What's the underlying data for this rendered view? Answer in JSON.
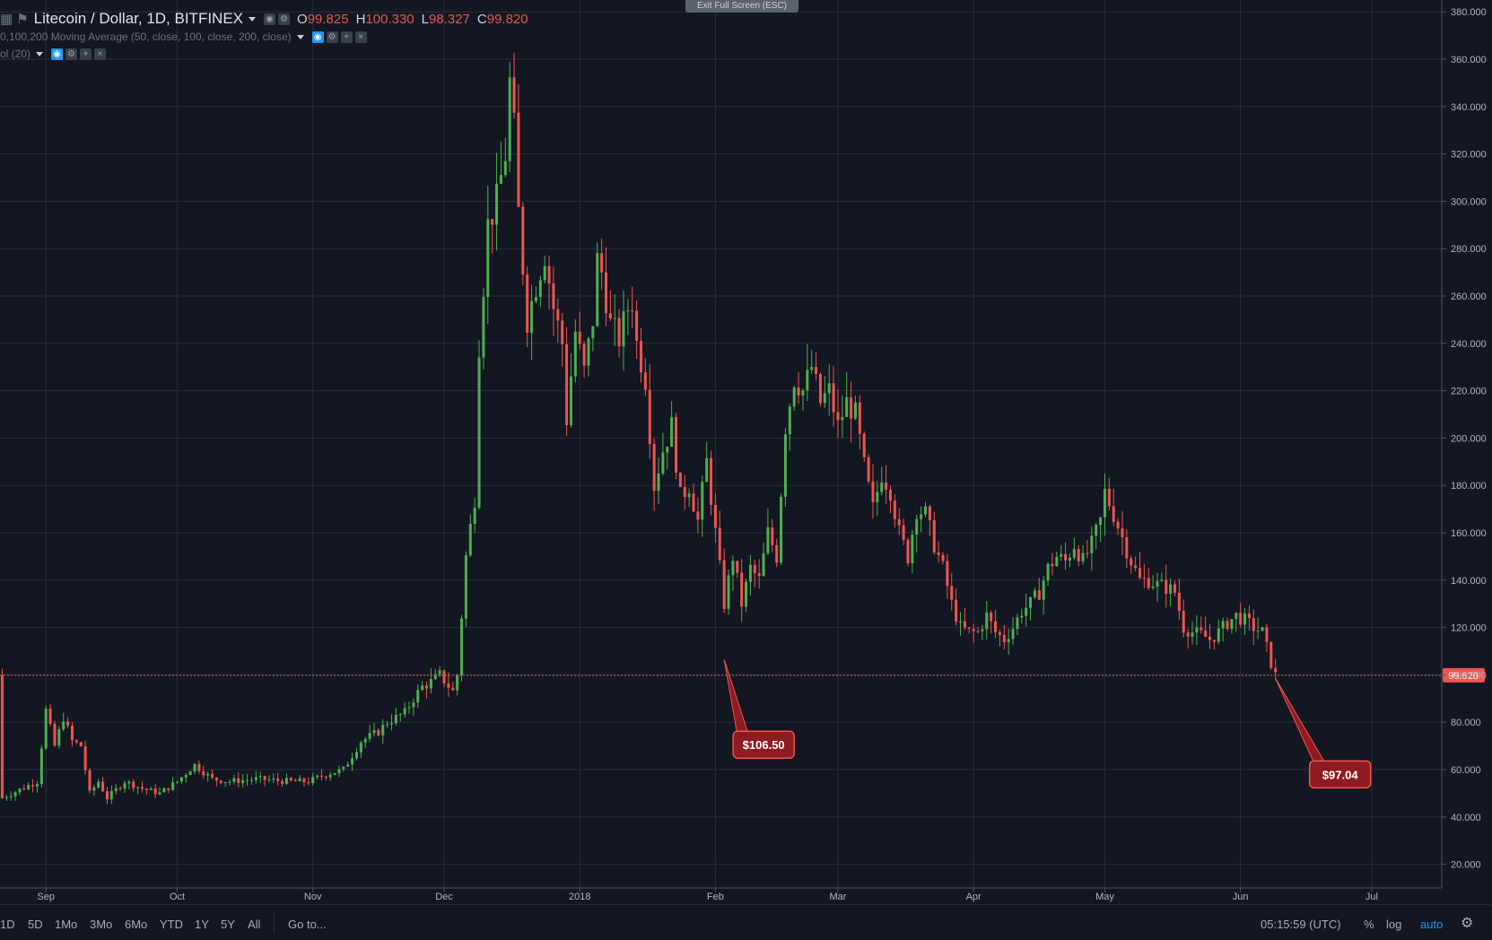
{
  "header": {
    "title": "Litecoin / Dollar, 1D, BITFINEX",
    "ohlc": [
      {
        "k": "O",
        "v": "99.825"
      },
      {
        "k": "H",
        "v": "100.330"
      },
      {
        "k": "L",
        "v": "98.327"
      },
      {
        "k": "C",
        "v": "99.820"
      }
    ],
    "indicator_ma": "0,100,200 Moving Average (50, close, 100, close, 200, close)",
    "indicator_vol": "ol (20)",
    "fullscreen_button": "Exit Full Screen (ESC)"
  },
  "toolbar": {
    "ranges": [
      "1D",
      "5D",
      "1Mo",
      "3Mo",
      "6Mo",
      "YTD",
      "1Y",
      "5Y",
      "All"
    ],
    "goto": "Go to...",
    "clock": "05:15:59 (UTC)",
    "percent": "%",
    "log": "log",
    "auto": "auto"
  },
  "colors": {
    "background": "#131722",
    "grid": "#2a2e39",
    "up": "#26a69a",
    "up_candle": "#4caf50",
    "down": "#ef5350",
    "callout": "#8e1a22",
    "accent": "#2196f3"
  },
  "chart_data": {
    "type": "candlestick",
    "title": "Litecoin / Dollar, 1D, BITFINEX",
    "xlabel": "",
    "ylabel": "",
    "ylim": [
      10,
      385
    ],
    "y_ticks": [
      20,
      40,
      60,
      80,
      100,
      120,
      140,
      160,
      180,
      200,
      220,
      240,
      260,
      280,
      300,
      320,
      340,
      360,
      380
    ],
    "y_tick_labels": [
      "20.000",
      "40.000",
      "60.000",
      "80.000",
      "100.000",
      "120.000",
      "140.000",
      "160.000",
      "180.000",
      "200.000",
      "220.000",
      "240.000",
      "260.000",
      "280.000",
      "300.000",
      "320.000",
      "340.000",
      "360.000",
      "380.000"
    ],
    "x_labels": [
      {
        "label": "Sep",
        "day": 2
      },
      {
        "label": "Oct",
        "day": 32
      },
      {
        "label": "Nov",
        "day": 63
      },
      {
        "label": "Dec",
        "day": 93
      },
      {
        "label": "2018",
        "day": 124
      },
      {
        "label": "Feb",
        "day": 155
      },
      {
        "label": "Mar",
        "day": 183
      },
      {
        "label": "Apr",
        "day": 214
      },
      {
        "label": "May",
        "day": 244
      },
      {
        "label": "Jun",
        "day": 275
      },
      {
        "label": "Jul",
        "day": 305
      }
    ],
    "x_range_days": [
      -8.5,
      321
    ],
    "close_sequence_points": [
      [
        -8,
        48
      ],
      [
        0,
        55
      ],
      [
        2,
        85
      ],
      [
        4,
        70
      ],
      [
        6,
        82
      ],
      [
        8,
        72
      ],
      [
        10,
        70
      ],
      [
        12,
        50
      ],
      [
        14,
        55
      ],
      [
        16,
        48
      ],
      [
        20,
        55
      ],
      [
        24,
        52
      ],
      [
        28,
        50
      ],
      [
        32,
        55
      ],
      [
        36,
        62
      ],
      [
        40,
        56
      ],
      [
        44,
        55
      ],
      [
        50,
        56
      ],
      [
        58,
        55
      ],
      [
        62,
        55
      ],
      [
        66,
        58
      ],
      [
        70,
        60
      ],
      [
        74,
        72
      ],
      [
        78,
        76
      ],
      [
        80,
        80
      ],
      [
        84,
        84
      ],
      [
        86,
        90
      ],
      [
        88,
        95
      ],
      [
        90,
        97
      ],
      [
        92,
        100
      ],
      [
        95,
        93
      ],
      [
        96,
        100
      ],
      [
        98,
        150
      ],
      [
        100,
        175
      ],
      [
        101,
        240
      ],
      [
        103,
        290
      ],
      [
        105,
        300
      ],
      [
        107,
        320
      ],
      [
        108,
        350
      ],
      [
        109,
        330
      ],
      [
        110,
        295
      ],
      [
        112,
        250
      ],
      [
        114,
        265
      ],
      [
        116,
        278
      ],
      [
        118,
        255
      ],
      [
        120,
        240
      ],
      [
        121,
        208
      ],
      [
        123,
        245
      ],
      [
        125,
        228
      ],
      [
        127,
        250
      ],
      [
        128,
        275
      ],
      [
        129,
        270
      ],
      [
        131,
        248
      ],
      [
        133,
        242
      ],
      [
        135,
        255
      ],
      [
        136,
        258
      ],
      [
        137,
        240
      ],
      [
        139,
        225
      ],
      [
        141,
        180
      ],
      [
        143,
        195
      ],
      [
        145,
        205
      ],
      [
        147,
        175
      ],
      [
        149,
        180
      ],
      [
        151,
        165
      ],
      [
        153,
        190
      ],
      [
        155,
        160
      ],
      [
        157,
        130
      ],
      [
        159,
        150
      ],
      [
        161,
        130
      ],
      [
        163,
        145
      ],
      [
        165,
        140
      ],
      [
        167,
        160
      ],
      [
        169,
        150
      ],
      [
        171,
        205
      ],
      [
        173,
        225
      ],
      [
        175,
        220
      ],
      [
        177,
        230
      ],
      [
        179,
        215
      ],
      [
        181,
        220
      ],
      [
        183,
        205
      ],
      [
        185,
        215
      ],
      [
        187,
        210
      ],
      [
        189,
        188
      ],
      [
        191,
        170
      ],
      [
        193,
        185
      ],
      [
        195,
        178
      ],
      [
        197,
        160
      ],
      [
        199,
        150
      ],
      [
        201,
        170
      ],
      [
        203,
        168
      ],
      [
        205,
        155
      ],
      [
        207,
        145
      ],
      [
        209,
        130
      ],
      [
        211,
        120
      ],
      [
        213,
        118
      ],
      [
        215,
        118
      ],
      [
        217,
        125
      ],
      [
        219,
        118
      ],
      [
        221,
        115
      ],
      [
        223,
        120
      ],
      [
        225,
        127
      ],
      [
        227,
        130
      ],
      [
        229,
        135
      ],
      [
        231,
        145
      ],
      [
        233,
        150
      ],
      [
        235,
        148
      ],
      [
        237,
        155
      ],
      [
        239,
        148
      ],
      [
        241,
        155
      ],
      [
        243,
        165
      ],
      [
        244,
        177
      ],
      [
        246,
        168
      ],
      [
        248,
        158
      ],
      [
        250,
        148
      ],
      [
        252,
        140
      ],
      [
        254,
        140
      ],
      [
        256,
        138
      ],
      [
        258,
        137
      ],
      [
        260,
        135
      ],
      [
        262,
        120
      ],
      [
        264,
        118
      ],
      [
        266,
        117
      ],
      [
        268,
        115
      ],
      [
        270,
        118
      ],
      [
        272,
        122
      ],
      [
        274,
        125
      ],
      [
        276,
        123
      ],
      [
        278,
        120
      ],
      [
        280,
        118
      ],
      [
        282,
        105
      ],
      [
        283,
        99.82
      ]
    ],
    "last_price": "99.820",
    "last_value": 99.82,
    "annotations": [
      {
        "label": "$106.50",
        "day": 157,
        "value": 106.5
      },
      {
        "label": "$97.04",
        "day": 283,
        "value": 98.5
      }
    ]
  }
}
